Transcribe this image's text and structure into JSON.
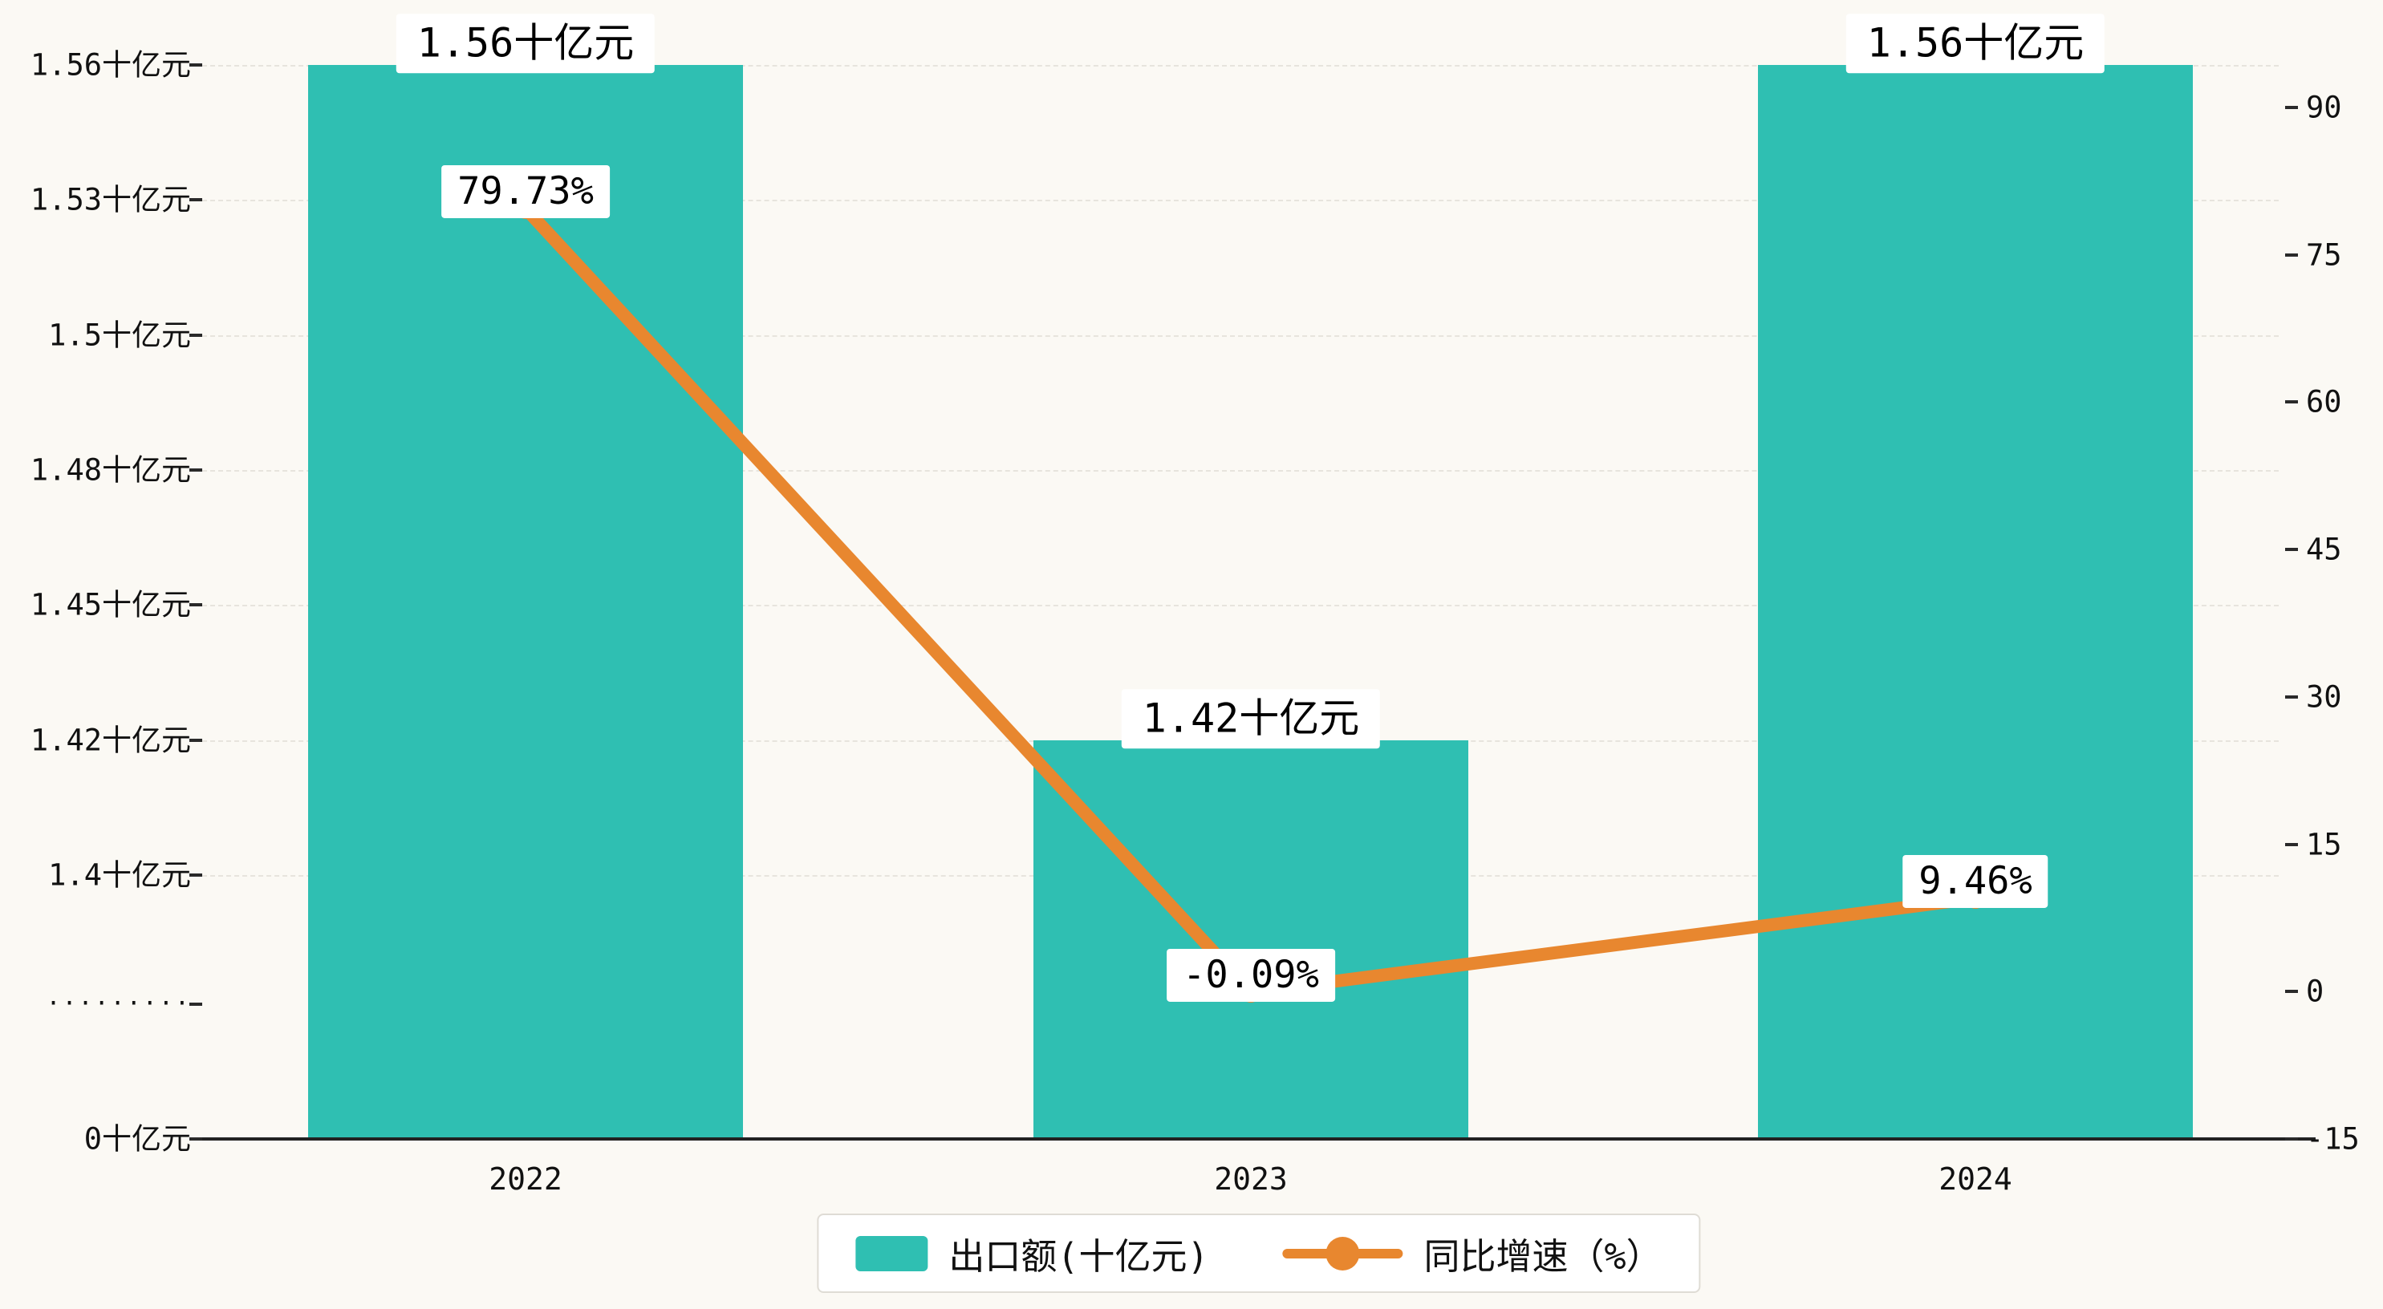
{
  "colors": {
    "background": "#fbf9f4",
    "bar": "#2fbfb2",
    "line": "#e8872f",
    "text": "#111111",
    "grid": "#e7e4dd",
    "axis_line": "#222222",
    "label_bg": "#ffffff",
    "legend_border": "#dfdcd5"
  },
  "chart_data": {
    "type": "combo",
    "categories": [
      "2022",
      "2023",
      "2024"
    ],
    "series": [
      {
        "name": "出口额(十亿元)",
        "type": "bar",
        "values": [
          1.56,
          1.42,
          1.56
        ],
        "value_labels": [
          "1.56十亿元",
          "1.42十亿元",
          "1.56十亿元"
        ],
        "color": "#2fbfb2"
      },
      {
        "name": "同比增速（%）",
        "type": "line",
        "values": [
          79.73,
          -0.09,
          9.46
        ],
        "value_labels": [
          "79.73%",
          "-0.09%",
          "9.46%"
        ],
        "color": "#e8872f"
      }
    ],
    "left_axis": {
      "tick_labels": [
        "1.56十亿元",
        "1.53十亿元",
        "1.5十亿元",
        "1.48十亿元",
        "1.45十亿元",
        "1.42十亿元",
        "1.4十亿元",
        "·········",
        "0十亿元"
      ],
      "tick_values": [
        1.56,
        1.53,
        1.5,
        1.48,
        1.45,
        1.42,
        1.4,
        null,
        0
      ],
      "axis_break": true
    },
    "right_axis": {
      "tick_labels": [
        "90",
        "75",
        "60",
        "45",
        "30",
        "15",
        "0",
        "-15"
      ],
      "tick_values": [
        90,
        75,
        60,
        45,
        30,
        15,
        0,
        -15
      ],
      "range": [
        -15,
        90
      ]
    },
    "x_axis": {
      "labels": [
        "2022",
        "2023",
        "2024"
      ]
    },
    "legend": [
      {
        "label": "出口额(十亿元)",
        "swatch": "bar"
      },
      {
        "label": "同比增速（%）",
        "swatch": "line"
      }
    ],
    "grid": true,
    "legend_position": "bottom"
  }
}
